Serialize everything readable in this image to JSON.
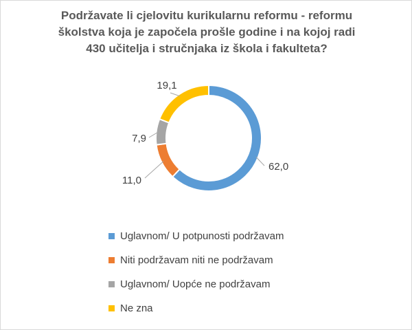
{
  "chart_data": {
    "type": "pie",
    "variant": "donut",
    "title_lines": [
      "Podržavate li cjelovitu kurikularnu reformu - reformu",
      "školstva koja je započela prošle godine i na kojoj radi",
      "430 učitelja i stručnjaka iz škola i fakulteta?"
    ],
    "series": [
      {
        "name": "Uglavnom/ U potpunosti podržavam",
        "value": 62.0,
        "label": "62,0",
        "color": "#5b9bd5"
      },
      {
        "name": "Niti podržavam niti ne podržavam",
        "value": 11.0,
        "label": "11,0",
        "color": "#ed7d31"
      },
      {
        "name": "Uglavnom/ Uopće ne podržavam",
        "value": 7.9,
        "label": "7,9",
        "color": "#a5a5a5"
      },
      {
        "name": "Ne zna",
        "value": 19.1,
        "label": "19,1",
        "color": "#ffc000"
      }
    ],
    "legend_position": "bottom",
    "start_angle_deg": 0,
    "direction": "clockwise"
  }
}
